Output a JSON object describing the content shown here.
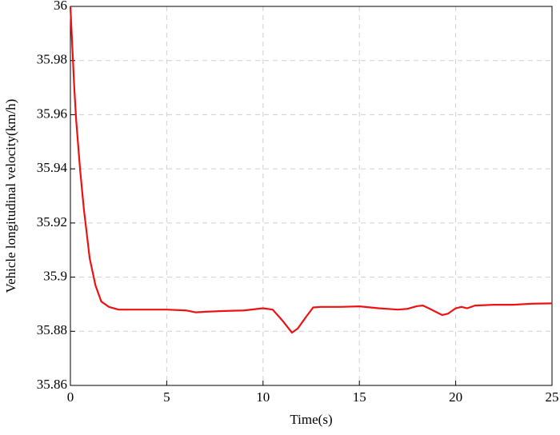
{
  "chart_data": {
    "type": "line",
    "xlabel": "Time(s)",
    "ylabel": "Vehicle longitudinal velocity(km/h)",
    "x": [
      0,
      0.1,
      0.2,
      0.3,
      0.5,
      0.7,
      1.0,
      1.3,
      1.6,
      2,
      2.5,
      3,
      4,
      5,
      6,
      6.5,
      7,
      8,
      9,
      10,
      10.5,
      11,
      11.5,
      11.8,
      12.2,
      12.6,
      13,
      14,
      15,
      16,
      17,
      17.5,
      18,
      18.3,
      18.6,
      19.3,
      19.6,
      20,
      20.3,
      20.6,
      21,
      22,
      23,
      24,
      25
    ],
    "values": [
      36.0,
      35.985,
      35.97,
      35.958,
      35.94,
      35.925,
      35.907,
      35.897,
      35.891,
      35.889,
      35.888,
      35.888,
      35.888,
      35.888,
      35.8877,
      35.887,
      35.8872,
      35.8875,
      35.8877,
      35.8885,
      35.888,
      35.884,
      35.8795,
      35.881,
      35.885,
      35.8888,
      35.889,
      35.889,
      35.8892,
      35.8885,
      35.888,
      35.8883,
      35.8893,
      35.8895,
      35.8885,
      35.886,
      35.8865,
      35.8885,
      35.889,
      35.8885,
      35.8895,
      35.8898,
      35.8898,
      35.8902,
      35.8903
    ],
    "color": "#ee1111",
    "xlim": [
      0,
      25
    ],
    "xticks": [
      0,
      5,
      10,
      15,
      20,
      25
    ],
    "ylim": [
      35.86,
      36
    ],
    "yticks": [
      35.86,
      35.88,
      35.9,
      35.92,
      35.94,
      35.96,
      35.98,
      36
    ],
    "grid": true
  }
}
